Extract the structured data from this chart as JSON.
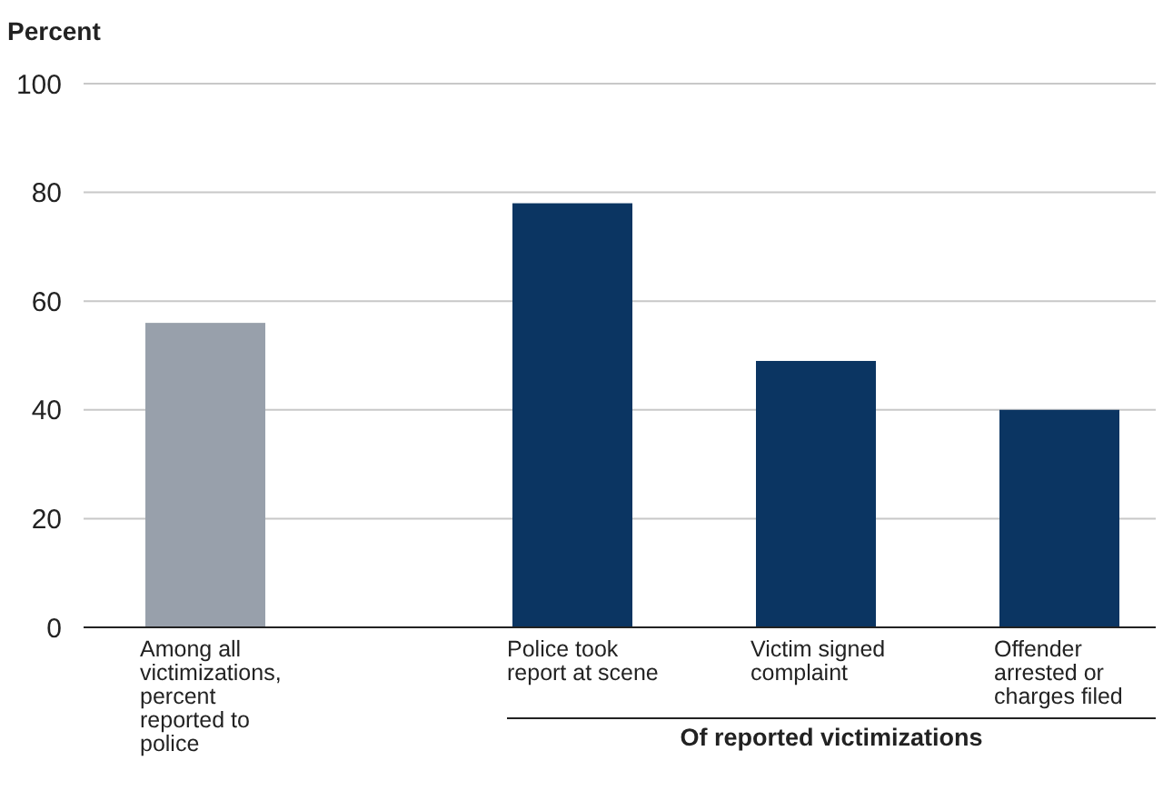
{
  "chart_data": {
    "type": "bar",
    "ylabel": "Percent",
    "categories": [
      "Among all victimizations, percent reported to police",
      "Police took report at scene",
      "Victim signed complaint",
      "Offender arrested or charges filed"
    ],
    "values": [
      56,
      78,
      49,
      40
    ],
    "colors": [
      "#98a0ab",
      "#0b3562",
      "#0b3562",
      "#0b3562"
    ],
    "ylim": [
      0,
      100
    ],
    "yticks": [
      0,
      20,
      40,
      60,
      80,
      100
    ],
    "grid": "y",
    "annotations": [
      "Of reported victimizations"
    ]
  }
}
